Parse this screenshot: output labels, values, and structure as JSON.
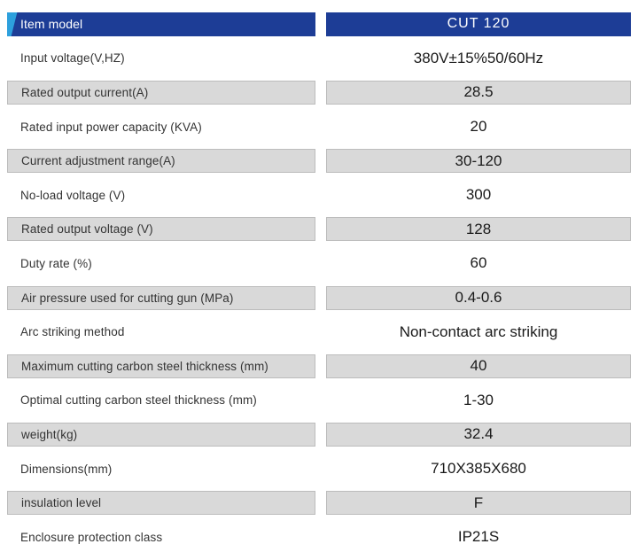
{
  "colors": {
    "header_bg": "#1d3d96",
    "header_accent": "#2da0dd",
    "stripe_gray": "#d9d9d9",
    "stripe_border": "#bcbcbc"
  },
  "table": {
    "header": {
      "label": "Item model",
      "value": "CUT 120"
    },
    "rows": [
      {
        "label": "Input voltage(V,HZ)",
        "value": "380V±15%50/60Hz"
      },
      {
        "label": "Rated output current(A)",
        "value": "28.5"
      },
      {
        "label": "Rated input power capacity (KVA)",
        "value": "20"
      },
      {
        "label": "Current adjustment range(A)",
        "value": "30-120"
      },
      {
        "label": "No-load voltage (V)",
        "value": "300"
      },
      {
        "label": "Rated output voltage (V)",
        "value": "128"
      },
      {
        "label": "Duty rate (%)",
        "value": "60"
      },
      {
        "label": "Air pressure used for cutting gun (MPa)",
        "value": "0.4-0.6"
      },
      {
        "label": "Arc striking method",
        "value": "Non-contact arc striking"
      },
      {
        "label": "Maximum cutting carbon steel thickness (mm)",
        "value": "40"
      },
      {
        "label": "Optimal cutting carbon steel thickness (mm)",
        "value": "1-30"
      },
      {
        "label": "weight(kg)",
        "value": "32.4"
      },
      {
        "label": "Dimensions(mm)",
        "value": "710X385X680"
      },
      {
        "label": "insulation level",
        "value": "F"
      },
      {
        "label": "Enclosure protection class",
        "value": "IP21S"
      }
    ]
  }
}
